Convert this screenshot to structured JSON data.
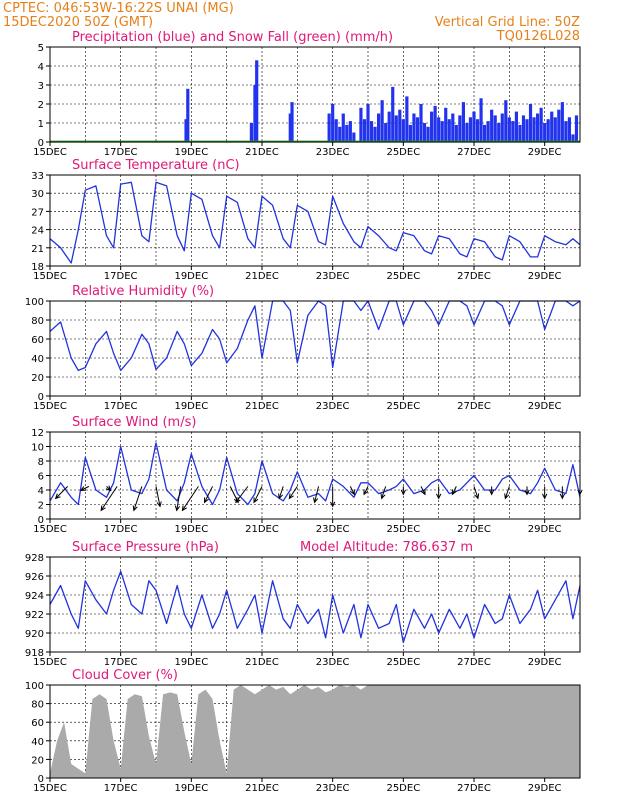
{
  "header": {
    "line1_left": "CPTEC:   046:53W-16:22S   UNAI (MG)",
    "line2_left": "15DEC2020 50Z (GMT)",
    "line2_right": "Vertical Grid Line: 50Z",
    "line3_right": "TQ0126L028"
  },
  "colors": {
    "line": "#2233dd",
    "precip": "#2233ee",
    "snow": "#2a9d2a",
    "cloud": "#aaaaaa",
    "title": "#e0187a",
    "header": "#e5801a"
  },
  "x_axis": {
    "start_day": 15,
    "end_day": 30,
    "labels": [
      "15DEC",
      "17DEC",
      "19DEC",
      "21DEC",
      "23DEC",
      "25DEC",
      "27DEC",
      "29DEC"
    ],
    "label_days": [
      15,
      17,
      19,
      21,
      23,
      25,
      27,
      29
    ],
    "grid_days": [
      16,
      17,
      18,
      19,
      20,
      21,
      22,
      23,
      24,
      25,
      26,
      27,
      28,
      29
    ]
  },
  "chart_data": [
    {
      "id": "precip",
      "type": "bar",
      "title": "Precipitation (blue) and Snow Fall (green) (mm/h)",
      "ylim": [
        0,
        5
      ],
      "yticks": [
        0,
        1,
        2,
        3,
        4,
        5
      ],
      "x": [
        18.85,
        18.9,
        20.7,
        20.8,
        20.85,
        21.8,
        21.85,
        22.9,
        23.0,
        23.1,
        23.2,
        23.3,
        23.4,
        23.5,
        23.6,
        23.8,
        23.9,
        24.0,
        24.1,
        24.2,
        24.3,
        24.4,
        24.5,
        24.6,
        24.7,
        24.8,
        24.9,
        25.0,
        25.1,
        25.2,
        25.3,
        25.4,
        25.5,
        25.6,
        25.7,
        25.8,
        25.9,
        26.0,
        26.1,
        26.2,
        26.3,
        26.4,
        26.5,
        26.6,
        26.7,
        26.8,
        26.9,
        27.0,
        27.1,
        27.2,
        27.3,
        27.4,
        27.5,
        27.6,
        27.7,
        27.8,
        27.9,
        28.0,
        28.1,
        28.2,
        28.3,
        28.4,
        28.5,
        28.6,
        28.7,
        28.8,
        28.9,
        29.0,
        29.1,
        29.2,
        29.3,
        29.4,
        29.5,
        29.6,
        29.7,
        29.8,
        29.9
      ],
      "values": [
        1.2,
        2.8,
        1.0,
        3.0,
        4.3,
        1.5,
        2.1,
        1.5,
        2.0,
        1.2,
        0.8,
        1.5,
        0.9,
        1.1,
        0.5,
        1.8,
        1.2,
        2.0,
        1.1,
        0.8,
        1.5,
        2.2,
        1.0,
        1.6,
        2.9,
        1.4,
        1.7,
        1.2,
        2.4,
        0.9,
        1.5,
        1.3,
        2.0,
        1.0,
        0.8,
        1.6,
        1.9,
        1.3,
        1.1,
        1.8,
        1.2,
        1.5,
        0.9,
        1.4,
        2.1,
        1.0,
        1.3,
        1.6,
        1.2,
        2.3,
        0.9,
        1.1,
        1.7,
        1.4,
        1.0,
        1.5,
        2.2,
        1.3,
        1.1,
        1.6,
        0.9,
        1.4,
        1.2,
        2.0,
        1.3,
        1.5,
        1.8,
        1.0,
        1.2,
        1.6,
        1.3,
        1.7,
        2.1,
        1.1,
        1.3,
        0.4,
        1.4
      ],
      "snow_x": [
        15,
        30
      ],
      "snow_values": [
        0.02,
        0.02
      ]
    },
    {
      "id": "temp",
      "type": "line",
      "title": "Surface Temperature (nC)",
      "ylim": [
        18,
        33
      ],
      "yticks": [
        18,
        21,
        24,
        27,
        30,
        33
      ],
      "x": [
        15.0,
        15.3,
        15.6,
        15.8,
        16.0,
        16.3,
        16.6,
        16.8,
        17.0,
        17.3,
        17.6,
        17.8,
        18.0,
        18.3,
        18.6,
        18.8,
        19.0,
        19.3,
        19.6,
        19.8,
        20.0,
        20.3,
        20.6,
        20.8,
        21.0,
        21.3,
        21.6,
        21.8,
        22.0,
        22.3,
        22.6,
        22.8,
        23.0,
        23.3,
        23.6,
        23.8,
        24.0,
        24.3,
        24.6,
        24.8,
        25.0,
        25.3,
        25.6,
        25.8,
        26.0,
        26.3,
        26.6,
        26.8,
        27.0,
        27.3,
        27.6,
        27.8,
        28.0,
        28.3,
        28.6,
        28.8,
        29.0,
        29.3,
        29.6,
        29.8,
        30.0
      ],
      "values": [
        22.5,
        21.0,
        18.5,
        24.0,
        30.5,
        31.2,
        23.0,
        21.0,
        31.5,
        31.8,
        23.0,
        22.0,
        31.8,
        31.2,
        23.0,
        20.5,
        30.0,
        29.0,
        23.0,
        21.0,
        29.5,
        28.5,
        22.5,
        21.0,
        29.5,
        28.0,
        22.5,
        21.0,
        28.0,
        27.0,
        22.0,
        21.5,
        29.5,
        25.0,
        22.0,
        21.0,
        24.5,
        23.0,
        21.0,
        20.5,
        23.5,
        23.0,
        20.5,
        20.0,
        23.0,
        22.5,
        20.0,
        19.5,
        22.5,
        22.0,
        19.5,
        19.0,
        23.0,
        22.0,
        19.5,
        19.5,
        23.0,
        22.0,
        21.5,
        22.5,
        21.5
      ]
    },
    {
      "id": "rh",
      "type": "line",
      "title": "Relative Humidity (%)",
      "ylim": [
        0,
        100
      ],
      "yticks": [
        0,
        20,
        40,
        60,
        80,
        100
      ],
      "x": [
        15.0,
        15.3,
        15.6,
        15.8,
        16.0,
        16.3,
        16.6,
        16.8,
        17.0,
        17.3,
        17.6,
        17.8,
        18.0,
        18.3,
        18.6,
        18.8,
        19.0,
        19.3,
        19.6,
        19.8,
        20.0,
        20.3,
        20.6,
        20.8,
        21.0,
        21.3,
        21.6,
        21.8,
        22.0,
        22.3,
        22.6,
        22.8,
        23.0,
        23.3,
        23.6,
        23.8,
        24.0,
        24.3,
        24.6,
        24.8,
        25.0,
        25.3,
        25.6,
        25.8,
        26.0,
        26.3,
        26.6,
        26.8,
        27.0,
        27.3,
        27.6,
        27.8,
        28.0,
        28.3,
        28.6,
        28.8,
        29.0,
        29.3,
        29.6,
        29.8,
        30.0
      ],
      "values": [
        68,
        78,
        40,
        27,
        30,
        55,
        68,
        45,
        27,
        40,
        65,
        55,
        28,
        40,
        68,
        55,
        32,
        45,
        70,
        60,
        35,
        50,
        80,
        95,
        40,
        100,
        100,
        90,
        35,
        85,
        100,
        95,
        30,
        100,
        100,
        90,
        100,
        70,
        100,
        100,
        75,
        100,
        100,
        90,
        75,
        100,
        100,
        95,
        75,
        100,
        100,
        95,
        75,
        100,
        100,
        100,
        70,
        100,
        100,
        95,
        100
      ]
    },
    {
      "id": "wind",
      "type": "line",
      "title": "Surface Wind (m/s)",
      "ylim": [
        0,
        12
      ],
      "yticks": [
        0,
        2,
        4,
        6,
        8,
        10,
        12
      ],
      "x": [
        15.0,
        15.3,
        15.6,
        15.8,
        16.0,
        16.3,
        16.6,
        16.8,
        17.0,
        17.3,
        17.6,
        17.8,
        18.0,
        18.3,
        18.6,
        18.8,
        19.0,
        19.3,
        19.6,
        19.8,
        20.0,
        20.3,
        20.6,
        20.8,
        21.0,
        21.3,
        21.6,
        21.8,
        22.0,
        22.3,
        22.6,
        22.8,
        23.0,
        23.3,
        23.6,
        23.8,
        24.0,
        24.3,
        24.6,
        24.8,
        25.0,
        25.3,
        25.6,
        25.8,
        26.0,
        26.3,
        26.6,
        26.8,
        27.0,
        27.3,
        27.6,
        27.8,
        28.0,
        28.3,
        28.6,
        28.8,
        29.0,
        29.3,
        29.6,
        29.8,
        30.0
      ],
      "values": [
        2.5,
        5.0,
        3.0,
        2.0,
        8.5,
        4.0,
        3.0,
        5.0,
        10.0,
        4.0,
        3.5,
        5.5,
        10.5,
        4.0,
        2.5,
        5.0,
        9.0,
        4.5,
        2.0,
        4.0,
        8.5,
        3.5,
        2.0,
        3.5,
        8.0,
        3.5,
        2.5,
        4.0,
        6.5,
        3.0,
        3.5,
        2.5,
        5.5,
        4.5,
        3.0,
        5.0,
        5.0,
        3.5,
        4.0,
        4.5,
        5.5,
        3.5,
        4.0,
        5.0,
        5.5,
        3.5,
        4.0,
        5.0,
        6.0,
        4.0,
        4.0,
        5.5,
        6.0,
        4.0,
        3.5,
        5.0,
        7.0,
        4.0,
        3.5,
        7.5,
        3.0
      ],
      "arrows_x": [
        15.5,
        16.1,
        16.6,
        16.9,
        17.6,
        18.0,
        18.7,
        19.2,
        19.6,
        20.1,
        20.6,
        21.0,
        21.6,
        22.0,
        22.6,
        23.0,
        23.5,
        24.0,
        24.5,
        25.0,
        25.5,
        26.0,
        26.5,
        27.0,
        27.5,
        28.0,
        28.5,
        29.0,
        29.5,
        30.0
      ],
      "arrows_u": [
        -3,
        -2,
        1,
        -4,
        -2,
        1,
        -1,
        -4,
        -2,
        2,
        -3,
        -2,
        -1,
        -2,
        -1,
        0,
        1,
        -1,
        -1,
        0,
        1,
        0,
        -1,
        1,
        0,
        -1,
        0,
        0,
        0,
        0
      ],
      "arrows_v": [
        -3,
        -1,
        -1,
        -6,
        -6,
        -5,
        -6,
        -6,
        -4,
        -4,
        -4,
        -4,
        -3,
        -3,
        -4,
        -5,
        -2,
        -2,
        -3,
        -2,
        -2,
        -3,
        -2,
        -3,
        -2,
        -3,
        -2,
        -3,
        -3,
        -2
      ]
    },
    {
      "id": "pres",
      "type": "line",
      "title": "Surface Pressure (hPa)",
      "subtitle": "Model Altitude: 786.637 m",
      "ylim": [
        918,
        928
      ],
      "yticks": [
        918,
        920,
        922,
        924,
        926,
        928
      ],
      "x": [
        15.0,
        15.3,
        15.6,
        15.8,
        16.0,
        16.3,
        16.6,
        16.8,
        17.0,
        17.3,
        17.6,
        17.8,
        18.0,
        18.3,
        18.6,
        18.8,
        19.0,
        19.3,
        19.6,
        19.8,
        20.0,
        20.3,
        20.6,
        20.8,
        21.0,
        21.3,
        21.6,
        21.8,
        22.0,
        22.3,
        22.6,
        22.8,
        23.0,
        23.3,
        23.6,
        23.8,
        24.0,
        24.3,
        24.6,
        24.8,
        25.0,
        25.3,
        25.6,
        25.8,
        26.0,
        26.3,
        26.6,
        26.8,
        27.0,
        27.3,
        27.6,
        27.8,
        28.0,
        28.3,
        28.6,
        28.8,
        29.0,
        29.3,
        29.6,
        29.8,
        30.0
      ],
      "values": [
        923.0,
        925.0,
        922.0,
        920.5,
        925.5,
        923.5,
        922.0,
        924.5,
        926.5,
        923.0,
        922.0,
        925.5,
        924.5,
        921.0,
        925.0,
        922.0,
        920.5,
        924.0,
        920.5,
        922.0,
        924.5,
        920.5,
        922.5,
        924.0,
        920.0,
        925.5,
        921.5,
        920.5,
        923.0,
        921.0,
        922.5,
        919.5,
        924.0,
        920.0,
        923.0,
        919.5,
        923.0,
        920.5,
        921.0,
        923.0,
        919.0,
        922.5,
        920.5,
        922.0,
        920.0,
        922.5,
        920.5,
        922.0,
        919.5,
        923.0,
        921.0,
        921.5,
        924.0,
        921.0,
        922.5,
        924.5,
        921.5,
        923.5,
        925.5,
        921.5,
        925.0
      ]
    },
    {
      "id": "cloud",
      "type": "area",
      "title": "Cloud Cover (%)",
      "ylim": [
        0,
        100
      ],
      "yticks": [
        0,
        20,
        40,
        60,
        80,
        100
      ],
      "x": [
        15.0,
        15.2,
        15.4,
        15.6,
        15.8,
        16.0,
        16.2,
        16.4,
        16.6,
        16.8,
        17.0,
        17.2,
        17.4,
        17.6,
        17.8,
        18.0,
        18.2,
        18.4,
        18.6,
        18.8,
        19.0,
        19.2,
        19.4,
        19.6,
        19.8,
        20.0,
        20.2,
        20.4,
        20.6,
        20.8,
        21.0,
        21.2,
        21.4,
        21.6,
        21.8,
        22.0,
        22.2,
        22.4,
        22.6,
        22.8,
        23.0,
        23.2,
        23.4,
        23.6,
        23.8,
        24.0,
        30.0
      ],
      "values": [
        5,
        40,
        60,
        15,
        10,
        5,
        85,
        90,
        85,
        40,
        10,
        85,
        90,
        88,
        45,
        15,
        90,
        92,
        90,
        50,
        15,
        90,
        95,
        85,
        40,
        5,
        95,
        100,
        95,
        90,
        95,
        100,
        95,
        98,
        90,
        95,
        100,
        95,
        98,
        92,
        95,
        100,
        98,
        100,
        95,
        100,
        100
      ]
    }
  ]
}
